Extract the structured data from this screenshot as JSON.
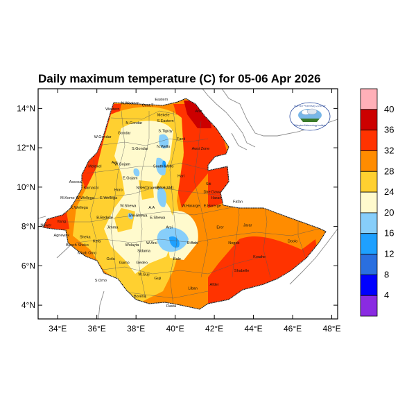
{
  "title": "Daily maximum temperature (C) for 05-06 Apr 2026",
  "map": {
    "x_ticks": [
      "34°E",
      "36°E",
      "38°E",
      "40°E",
      "42°E",
      "44°E",
      "46°E",
      "48°E"
    ],
    "y_ticks": [
      "14°N",
      "12°N",
      "10°N",
      "8°N",
      "6°N",
      "4°N"
    ],
    "lon_range": [
      33,
      48.3
    ],
    "lat_range": [
      3.3,
      15
    ]
  },
  "colorbar": {
    "labels": [
      "40",
      "36",
      "32",
      "28",
      "24",
      "20",
      "16",
      "12",
      "8",
      "4"
    ],
    "colors": [
      "#ffb0b8",
      "#cc0000",
      "#ff3300",
      "#ff8c00",
      "#ffd030",
      "#fffacd",
      "#87cefa",
      "#1ea0ff",
      "#2a6fe0",
      "#0000ff",
      "#8a2be2"
    ]
  },
  "colors": {
    "land_outline": "#000000",
    "neighbor_border": "#8a8a8a",
    "admin_border": "#555555",
    "grid": "#bbbbbb"
  },
  "regions": [
    {
      "name": "N.Western",
      "lon": 37.7,
      "lat": 14.2
    },
    {
      "name": "Cent.T",
      "lon": 38.6,
      "lat": 14.1
    },
    {
      "name": "Eastern",
      "lon": 39.3,
      "lat": 14.4
    },
    {
      "name": "Western",
      "lon": 36.8,
      "lat": 13.9
    },
    {
      "name": "Mekele",
      "lon": 39.4,
      "lat": 13.6
    },
    {
      "name": "S.Eastern",
      "lon": 39.5,
      "lat": 13.3
    },
    {
      "name": "N.Gondar",
      "lon": 37.9,
      "lat": 13.2
    },
    {
      "name": "Gondar",
      "lon": 37.4,
      "lat": 12.7
    },
    {
      "name": "S.Tigray",
      "lon": 39.5,
      "lat": 12.8
    },
    {
      "name": "W.Gondar",
      "lon": 36.3,
      "lat": 12.5
    },
    {
      "name": "Afar",
      "lon": 41.2,
      "lat": 13.8
    },
    {
      "name": "Fanti",
      "lon": 40.3,
      "lat": 12.4
    },
    {
      "name": "N.Wello",
      "lon": 39.4,
      "lat": 12.0
    },
    {
      "name": "S.Gondar",
      "lon": 38.2,
      "lat": 11.9
    },
    {
      "name": "Awsi Zone",
      "lon": 41.3,
      "lat": 11.9
    },
    {
      "name": "Metekel",
      "lon": 35.9,
      "lat": 11.0
    },
    {
      "name": "Awi",
      "lon": 36.9,
      "lat": 11.2
    },
    {
      "name": "W.Gojam",
      "lon": 37.3,
      "lat": 11.1
    },
    {
      "name": "South Wello",
      "lon": 39.4,
      "lat": 11.0
    },
    {
      "name": "E.Gojam",
      "lon": 37.7,
      "lat": 10.4
    },
    {
      "name": "Hari",
      "lon": 40.3,
      "lat": 10.5
    },
    {
      "name": "Assosa",
      "lon": 34.9,
      "lat": 10.2
    },
    {
      "name": "Kamashi",
      "lon": 35.7,
      "lat": 9.9
    },
    {
      "name": "Horo",
      "lon": 37.1,
      "lat": 9.8
    },
    {
      "name": "NSH(Oromia)",
      "lon": 38.6,
      "lat": 9.9
    },
    {
      "name": "NSH(AM)",
      "lon": 39.5,
      "lat": 9.9
    },
    {
      "name": "Siti",
      "lon": 41.7,
      "lat": 10.1
    },
    {
      "name": "Dire Dawa",
      "lon": 41.9,
      "lat": 9.7
    },
    {
      "name": "M.Komo",
      "lon": 34.5,
      "lat": 9.4
    },
    {
      "name": "W.Wellega",
      "lon": 35.4,
      "lat": 9.4
    },
    {
      "name": "E.Wellega",
      "lon": 36.6,
      "lat": 9.4
    },
    {
      "name": "K.Wellega",
      "lon": 35.1,
      "lat": 8.9
    },
    {
      "name": "W.Shewa",
      "lon": 37.6,
      "lat": 9.0
    },
    {
      "name": "A.A",
      "lon": 38.8,
      "lat": 8.9
    },
    {
      "name": "W.Hararge",
      "lon": 40.8,
      "lat": 9.0
    },
    {
      "name": "E.Harerge",
      "lon": 41.9,
      "lat": 9.0
    },
    {
      "name": "Harari",
      "lon": 42.1,
      "lat": 9.4
    },
    {
      "name": "Fafan",
      "lon": 43.2,
      "lat": 9.2
    },
    {
      "name": "B.Bedelle",
      "lon": 36.4,
      "lat": 8.4
    },
    {
      "name": "SW.Shewa",
      "lon": 38.1,
      "lat": 8.5
    },
    {
      "name": "E.Shewa",
      "lon": 39.1,
      "lat": 8.4
    },
    {
      "name": "Itang",
      "lon": 34.2,
      "lat": 8.2
    },
    {
      "name": "Nuwer",
      "lon": 33.4,
      "lat": 8.0
    },
    {
      "name": "Jimma",
      "lon": 36.8,
      "lat": 7.9
    },
    {
      "name": "Arsi",
      "lon": 39.7,
      "lat": 7.9
    },
    {
      "name": "Erer",
      "lon": 42.3,
      "lat": 7.9
    },
    {
      "name": "Jarar",
      "lon": 43.7,
      "lat": 8.0
    },
    {
      "name": "Agnewak",
      "lon": 34.2,
      "lat": 7.5
    },
    {
      "name": "Sheka",
      "lon": 35.4,
      "lat": 7.4
    },
    {
      "name": "Kefa",
      "lon": 36.0,
      "lat": 7.2
    },
    {
      "name": "Bench Sheko",
      "lon": 35.0,
      "lat": 7.0
    },
    {
      "name": "Wolayta",
      "lon": 37.8,
      "lat": 7.0
    },
    {
      "name": "W.Arsi",
      "lon": 38.8,
      "lat": 7.1
    },
    {
      "name": "E.Bale",
      "lon": 40.9,
      "lat": 7.1
    },
    {
      "name": "Nogob",
      "lon": 43.0,
      "lat": 7.1
    },
    {
      "name": "Doolo",
      "lon": 46.0,
      "lat": 7.2
    },
    {
      "name": "Mirab Omo",
      "lon": 35.5,
      "lat": 6.6
    },
    {
      "name": "Sidama",
      "lon": 38.4,
      "lat": 6.7
    },
    {
      "name": "Gofa",
      "lon": 36.7,
      "lat": 6.3
    },
    {
      "name": "Bale",
      "lon": 40.1,
      "lat": 6.3
    },
    {
      "name": "Korahe",
      "lon": 44.3,
      "lat": 6.4
    },
    {
      "name": "Gamo",
      "lon": 37.4,
      "lat": 6.1
    },
    {
      "name": "Gedeo",
      "lon": 38.3,
      "lat": 6.1
    },
    {
      "name": "Shabelle",
      "lon": 43.4,
      "lat": 5.7
    },
    {
      "name": "W.Guji",
      "lon": 38.4,
      "lat": 5.5
    },
    {
      "name": "Guji",
      "lon": 39.1,
      "lat": 5.3
    },
    {
      "name": "S.Omo",
      "lon": 36.2,
      "lat": 5.2
    },
    {
      "name": "Afder",
      "lon": 42.0,
      "lat": 5.0
    },
    {
      "name": "Liban",
      "lon": 40.9,
      "lat": 4.8
    },
    {
      "name": "Borena",
      "lon": 38.2,
      "lat": 4.4
    },
    {
      "name": "Dawa",
      "lon": 39.8,
      "lat": 3.9
    }
  ],
  "logo": {
    "text_top": "የኢትዮጵያ ሚቲዎሮሎጂ ኢንስቲትዩት",
    "text_bottom": "Ethiopian Meteorology Institute"
  }
}
